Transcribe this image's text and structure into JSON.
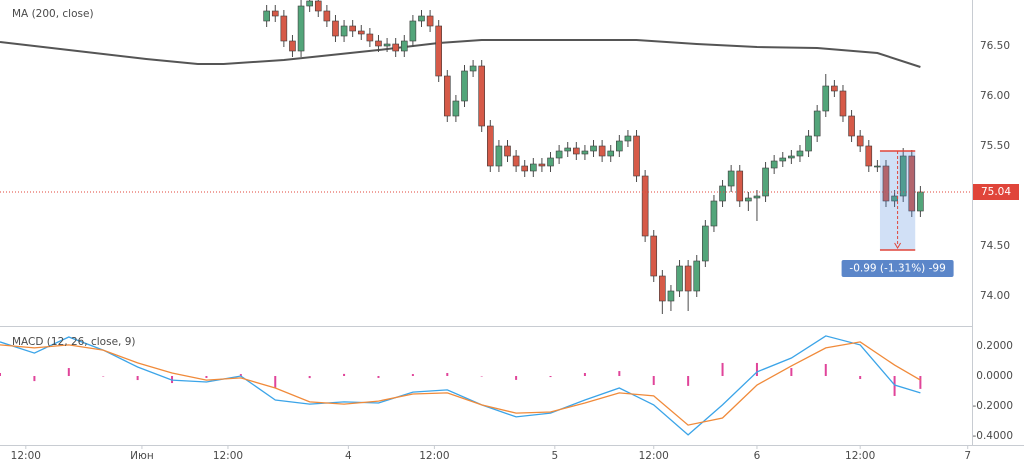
{
  "chart_data": [
    {
      "type": "candlestick",
      "x": [
        31,
        32,
        33,
        34,
        35,
        36,
        37,
        38,
        39,
        40,
        41,
        42,
        43,
        44,
        45,
        46,
        47,
        48,
        49,
        50,
        51,
        52,
        53,
        54,
        55,
        56,
        57,
        58,
        59,
        60,
        61,
        62,
        63,
        64,
        65,
        66,
        67,
        68,
        69,
        70,
        71,
        72,
        73,
        74,
        75,
        76,
        77,
        78,
        79,
        80,
        81,
        82,
        83,
        84,
        85,
        86,
        87,
        88,
        89,
        90,
        91,
        92,
        93,
        94,
        95,
        96,
        97,
        98,
        99,
        100,
        101,
        102,
        103,
        104,
        105,
        106,
        107
      ],
      "open": [
        76.75,
        76.85,
        76.8,
        76.55,
        76.45,
        76.9,
        76.95,
        76.85,
        76.75,
        76.6,
        76.7,
        76.65,
        76.62,
        76.55,
        76.5,
        76.52,
        76.45,
        76.55,
        76.75,
        76.8,
        76.7,
        76.2,
        75.8,
        75.95,
        76.25,
        76.3,
        75.7,
        75.3,
        75.5,
        75.4,
        75.3,
        75.25,
        75.32,
        75.3,
        75.38,
        75.45,
        75.48,
        75.42,
        75.45,
        75.5,
        75.4,
        75.45,
        75.55,
        75.6,
        75.2,
        74.6,
        74.2,
        73.95,
        74.05,
        74.3,
        74.05,
        74.35,
        74.7,
        74.95,
        75.1,
        75.25,
        74.95,
        74.98,
        75.0,
        75.28,
        75.35,
        75.38,
        75.4,
        75.45,
        75.6,
        75.85,
        76.1,
        76.05,
        75.8,
        75.6,
        75.5,
        75.3,
        75.3,
        74.95,
        75.0,
        75.4,
        74.85
      ],
      "high": [
        76.91,
        76.91,
        76.86,
        76.61,
        76.96,
        77.01,
        77.01,
        76.91,
        76.81,
        76.76,
        76.76,
        76.71,
        76.68,
        76.61,
        76.58,
        76.58,
        76.61,
        76.81,
        76.86,
        76.86,
        76.76,
        76.26,
        76.01,
        76.31,
        76.36,
        76.36,
        75.76,
        75.56,
        75.56,
        75.46,
        75.36,
        75.38,
        75.38,
        75.44,
        75.51,
        75.54,
        75.54,
        75.51,
        75.56,
        75.56,
        75.51,
        75.61,
        75.66,
        75.66,
        75.26,
        74.66,
        74.26,
        74.11,
        74.36,
        74.36,
        74.41,
        74.76,
        75.01,
        75.16,
        75.31,
        75.31,
        75.04,
        75.06,
        75.34,
        75.41,
        75.44,
        75.46,
        75.51,
        75.66,
        75.91,
        76.22,
        76.16,
        76.11,
        75.86,
        75.66,
        75.56,
        75.36,
        75.36,
        75.06,
        75.48,
        75.46,
        75.1
      ],
      "low": [
        76.69,
        76.74,
        76.49,
        76.39,
        76.39,
        76.84,
        76.79,
        76.69,
        76.54,
        76.54,
        76.59,
        76.56,
        76.49,
        76.44,
        76.44,
        76.39,
        76.39,
        76.49,
        76.69,
        76.64,
        76.14,
        75.74,
        75.74,
        75.89,
        76.19,
        75.64,
        75.24,
        75.24,
        75.34,
        75.24,
        75.19,
        75.19,
        75.24,
        75.24,
        75.32,
        75.39,
        75.36,
        75.36,
        75.39,
        75.34,
        75.34,
        75.39,
        75.49,
        75.14,
        74.54,
        74.14,
        73.82,
        73.85,
        73.99,
        73.85,
        73.99,
        74.29,
        74.64,
        74.89,
        75.04,
        74.89,
        74.85,
        74.75,
        74.94,
        75.22,
        75.29,
        75.32,
        75.34,
        75.39,
        75.54,
        75.79,
        75.99,
        75.74,
        75.54,
        75.44,
        75.24,
        75.24,
        74.89,
        74.89,
        74.94,
        74.79,
        74.79
      ],
      "close": [
        76.85,
        76.8,
        76.55,
        76.45,
        76.9,
        76.95,
        76.85,
        76.75,
        76.6,
        76.7,
        76.65,
        76.62,
        76.55,
        76.5,
        76.52,
        76.45,
        76.55,
        76.75,
        76.8,
        76.7,
        76.2,
        75.8,
        75.95,
        76.25,
        76.3,
        75.7,
        75.3,
        75.5,
        75.4,
        75.3,
        75.25,
        75.32,
        75.3,
        75.38,
        75.45,
        75.48,
        75.42,
        75.45,
        75.5,
        75.4,
        75.45,
        75.55,
        75.6,
        75.2,
        74.6,
        74.2,
        73.95,
        74.05,
        74.3,
        74.05,
        74.35,
        74.7,
        74.95,
        75.1,
        75.25,
        74.95,
        74.98,
        75.0,
        75.28,
        75.35,
        75.38,
        75.4,
        75.45,
        75.6,
        75.85,
        76.1,
        76.05,
        75.8,
        75.6,
        75.5,
        75.3,
        75.3,
        74.95,
        75.0,
        75.4,
        74.85,
        75.04
      ],
      "up_color": "#53a57a",
      "down_color": "#d65a48",
      "last_price_color": "#e0453a",
      "series": [
        {
          "name": "MA (200, close)",
          "color": "#555555",
          "x": [
            0,
            10,
            17,
            23,
            26,
            33,
            44,
            51,
            56,
            74,
            81,
            88,
            95,
            102,
            107
          ],
          "values": [
            76.54,
            76.44,
            76.37,
            76.32,
            76.32,
            76.36,
            76.46,
            76.53,
            76.56,
            76.56,
            76.52,
            76.49,
            76.48,
            76.43,
            76.29
          ]
        }
      ],
      "measure": {
        "text": "-0.99 (-1.31%) -99",
        "x": [
          102.3,
          106.4
        ],
        "y": [
          75.45,
          74.46
        ]
      },
      "xlim": [
        0,
        113
      ],
      "ylim": [
        73.71,
        76.96
      ],
      "yticks": [
        {
          "value": 74,
          "label": "74.00"
        },
        {
          "value": 74.5,
          "label": "74.50"
        },
        {
          "value": 75.5,
          "label": "75.50"
        },
        {
          "value": 76,
          "label": "76.00"
        },
        {
          "value": 76.5,
          "label": "76.50"
        }
      ],
      "grid": true
    },
    {
      "type": "macd",
      "title": "MACD (12, 26, close, 9)",
      "x": [
        0,
        4,
        8,
        12,
        16,
        20,
        24,
        28,
        32,
        36,
        40,
        44,
        48,
        52,
        56,
        60,
        64,
        68,
        72,
        76,
        80,
        84,
        88,
        92,
        96,
        100,
        104,
        107
      ],
      "series": [
        {
          "color": "#3ba4e8",
          "values": [
            0.227,
            0.153,
            0.26,
            0.173,
            0.06,
            -0.027,
            -0.04,
            0,
            -0.16,
            -0.187,
            -0.173,
            -0.18,
            -0.107,
            -0.093,
            -0.193,
            -0.273,
            -0.247,
            -0.16,
            -0.08,
            -0.193,
            -0.393,
            -0.193,
            0.027,
            0.12,
            0.267,
            0.207,
            -0.06,
            -0.113
          ]
        },
        {
          "color": "#f08a3a",
          "values": [
            0.207,
            0.187,
            0.207,
            0.173,
            0.087,
            0.02,
            -0.027,
            -0.013,
            -0.08,
            -0.173,
            -0.187,
            -0.167,
            -0.12,
            -0.113,
            -0.193,
            -0.247,
            -0.24,
            -0.18,
            -0.113,
            -0.133,
            -0.327,
            -0.28,
            -0.06,
            0.067,
            0.187,
            0.227,
            0.073,
            -0.027
          ]
        },
        {
          "color": "#e0449a",
          "values": [
            0.02,
            -0.034,
            0.053,
            0,
            -0.027,
            -0.047,
            -0.013,
            0.013,
            -0.08,
            -0.014,
            0.014,
            -0.013,
            0.013,
            0.02,
            0,
            -0.026,
            -0.007,
            0.02,
            0.033,
            -0.06,
            -0.066,
            0.087,
            0.087,
            0.053,
            0.08,
            -0.02,
            -0.133,
            -0.086
          ]
        }
      ],
      "xlim": [
        0,
        113
      ],
      "ylim": [
        -0.46,
        0.32
      ],
      "yticks": [
        {
          "value": -0.4,
          "label": "-0.4000"
        },
        {
          "value": -0.2,
          "label": "-0.2000"
        },
        {
          "value": 0,
          "label": "0.0000"
        },
        {
          "value": 0.2,
          "label": "0.2000"
        }
      ],
      "xticks": [
        {
          "value": 3,
          "label": "12:00"
        },
        {
          "value": 16.5,
          "label": "Июн"
        },
        {
          "value": 26.5,
          "label": "12:00"
        },
        {
          "value": 40.5,
          "label": "4"
        },
        {
          "value": 50.5,
          "label": "12:00"
        },
        {
          "value": 64.5,
          "label": "5"
        },
        {
          "value": 76,
          "label": "12:00"
        },
        {
          "value": 88,
          "label": "6"
        },
        {
          "value": 100,
          "label": "12:00"
        },
        {
          "value": 112.5,
          "label": "7"
        }
      ],
      "grid": true
    }
  ]
}
